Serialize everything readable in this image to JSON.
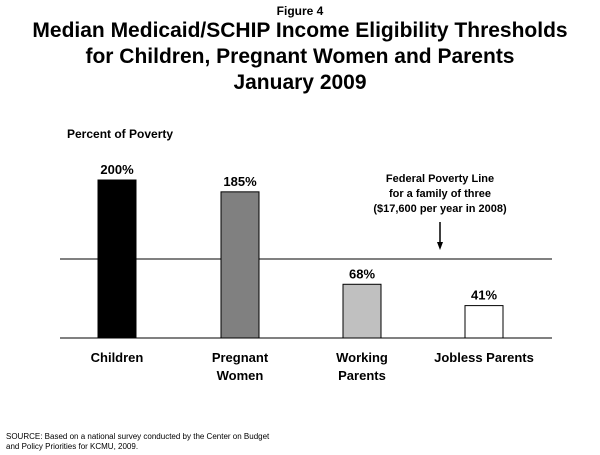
{
  "figure_label": "Figure 4",
  "chart_data": {
    "type": "bar",
    "title_lines": [
      "Median Medicaid/SCHIP Income Eligibility Thresholds",
      "for Children, Pregnant Women and Parents",
      "January 2009"
    ],
    "ylabel": "Percent of Poverty",
    "categories": [
      [
        "Children"
      ],
      [
        "Pregnant",
        "Women"
      ],
      [
        "Working",
        "Parents"
      ],
      [
        "Jobless Parents"
      ]
    ],
    "values": [
      200,
      185,
      68,
      41
    ],
    "value_labels": [
      "200%",
      "185%",
      "68%",
      "41%"
    ],
    "bar_colors": [
      "#000000",
      "#808080",
      "#c0c0c0",
      "#ffffff"
    ],
    "reference_line": {
      "value": 100,
      "label_lines": [
        "Federal Poverty Line",
        "for a family of three",
        "($17,600 per year in 2008)"
      ]
    },
    "ylim": [
      0,
      200
    ]
  },
  "source": {
    "line1": "SOURCE: Based on a national survey conducted by the Center on Budget",
    "line2": "and Policy Priorities for KCMU, 2009."
  }
}
